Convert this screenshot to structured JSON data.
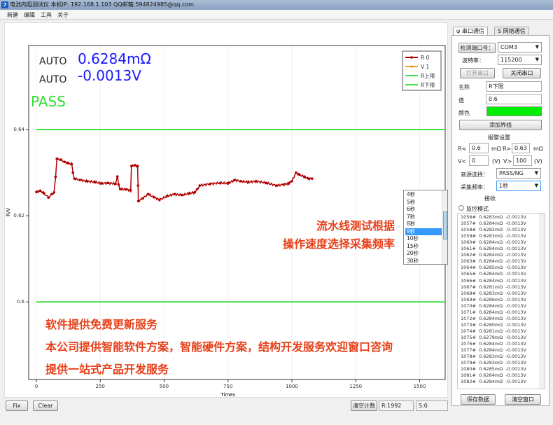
{
  "window": {
    "title": "电池内阻测试仪  本机IP: 192.168.1.103  QQ邮箱:594824985@qq.com",
    "icon": "app-icon"
  },
  "menu": [
    "新建",
    "编辑",
    "工具",
    "关于"
  ],
  "readout": {
    "mode_r": "AUTO",
    "mode_v": "AUTO",
    "resistance": "0.6284mΩ",
    "voltage": "-0.0013V",
    "result": "PASS",
    "result_color": "#33dd33",
    "value_color": "#1a1aff"
  },
  "chart_data": {
    "type": "line",
    "xlabel": "Times",
    "ylabel": "R/V",
    "xlim": [
      -30,
      1600
    ],
    "ylim": [
      0.582,
      0.6595
    ],
    "xticks": [
      "0",
      "250",
      "500",
      "750",
      "1000",
      "1250",
      "1500"
    ],
    "xtick_values": [
      0,
      250,
      500,
      750,
      1000,
      1250,
      1500
    ],
    "yticks": [
      "0.6",
      "0.62",
      "0.64"
    ],
    "ytick_values": [
      0.6,
      0.62,
      0.64
    ],
    "grid": true,
    "legend_placement": "top-right",
    "legend": [
      {
        "name": "R 0",
        "color": "#b00000"
      },
      {
        "name": "V 1",
        "color": "#f0a020"
      },
      {
        "name": "R上限",
        "color": "#44dd44"
      },
      {
        "name": "R下限",
        "color": "#44dd44"
      }
    ],
    "limits": {
      "upper": 0.64,
      "lower": 0.6
    },
    "series": [
      {
        "name": "R 0",
        "color": "#b00000",
        "points": [
          [
            0,
            0.6255
          ],
          [
            15,
            0.6258
          ],
          [
            30,
            0.6252
          ],
          [
            47,
            0.6242
          ],
          [
            60,
            0.625
          ],
          [
            69,
            0.6254
          ],
          [
            75,
            0.629
          ],
          [
            80,
            0.6332
          ],
          [
            95,
            0.633
          ],
          [
            110,
            0.6325
          ],
          [
            125,
            0.6322
          ],
          [
            138,
            0.632
          ],
          [
            143,
            0.63
          ],
          [
            149,
            0.6286
          ],
          [
            170,
            0.6283
          ],
          [
            200,
            0.628
          ],
          [
            230,
            0.6278
          ],
          [
            253,
            0.6275
          ],
          [
            280,
            0.6276
          ],
          [
            310,
            0.6274
          ],
          [
            317,
            0.6291
          ],
          [
            322,
            0.6272
          ],
          [
            328,
            0.6262
          ],
          [
            350,
            0.6261
          ],
          [
            369,
            0.6259
          ],
          [
            372,
            0.6315
          ],
          [
            385,
            0.6317
          ],
          [
            396,
            0.6315
          ],
          [
            398,
            0.627
          ],
          [
            399,
            0.6234
          ],
          [
            415,
            0.624
          ],
          [
            438,
            0.625
          ],
          [
            460,
            0.6243
          ],
          [
            482,
            0.6237
          ],
          [
            510,
            0.6245
          ],
          [
            540,
            0.625
          ],
          [
            570,
            0.6248
          ],
          [
            600,
            0.6252
          ],
          [
            619,
            0.6254
          ],
          [
            630,
            0.6262
          ],
          [
            639,
            0.627
          ],
          [
            680,
            0.6274
          ],
          [
            720,
            0.6276
          ],
          [
            750,
            0.6275
          ],
          [
            776,
            0.6283
          ],
          [
            800,
            0.628
          ],
          [
            830,
            0.6278
          ],
          [
            860,
            0.628
          ],
          [
            900,
            0.6276
          ],
          [
            941,
            0.627
          ],
          [
            970,
            0.6273
          ],
          [
            988,
            0.6275
          ],
          [
            1000,
            0.628
          ],
          [
            1016,
            0.63
          ],
          [
            1030,
            0.6295
          ],
          [
            1050,
            0.629
          ],
          [
            1065,
            0.6286
          ],
          [
            1079,
            0.6286
          ]
        ]
      }
    ]
  },
  "ads": {
    "line1": "流水线测试根据",
    "line2": "操作速度选择采集频率",
    "b1": "软件提供免费更新服务",
    "b2": "本公司提供智能软件方案，智能硬件方案，结构开发服务欢迎窗口咨询",
    "b3": "提供一站式产品开发服务"
  },
  "bottom": {
    "fix": "Fix",
    "clear": "Clear",
    "reset_count": "清空计数",
    "r_count": "R:1992",
    "s_count": "S:0"
  },
  "panel": {
    "tabs": [
      "串口通信",
      "网络通信"
    ],
    "detect_port": "检测端口号：",
    "port": "COM3",
    "baud_label": "波特率：",
    "baud": "115200",
    "open": "打开串口",
    "close": "关闭串口",
    "name_label": "名称",
    "name_value": "R下限",
    "value_label": "值",
    "value_value": "0.6",
    "color_label": "颜色",
    "color_value": "#00ee00",
    "add_line": "添加界线",
    "alarm_title": "报警设置",
    "r_lt": "R<",
    "r_lt_v": "0.6",
    "unit_mohm": "mΩ",
    "r_gt": "R>",
    "r_gt_v": "0.63",
    "v_lt": "V<",
    "v_lt_v": "0",
    "unit_v": "(V)",
    "v_gt": "V>",
    "v_gt_v": "100",
    "sound_label": "音源选择：",
    "sound": "PASS/NG",
    "freq_label": "采集频率：",
    "freq": "1秒",
    "recv_label": "接收",
    "monitor": "监控模式",
    "freq_options": [
      "4秒",
      "5秒",
      "6秒",
      "7秒",
      "8秒",
      "9秒",
      "10秒",
      "15秒",
      "20秒",
      "30秒"
    ],
    "freq_highlight": "9秒",
    "log": [
      "1056#  0.6283mΩ  -0.0013V",
      "1057#  0.6284mΩ  -0.0013V",
      "1058#  0.6282mΩ  -0.0013V",
      "1059#  0.6283mΩ  -0.0013V",
      "1060#  0.6284mΩ  -0.0013V",
      "1061#  0.6284mΩ  -0.0013V",
      "1062#  0.6284mΩ  -0.0013V",
      "1063#  0.6284mΩ  -0.0013V",
      "1064#  0.6285mΩ  -0.0013V",
      "1065#  0.6284mΩ  -0.0013V",
      "1066#  0.6284mΩ  -0.0013V",
      "1067#  0.6281mΩ  -0.0013V",
      "1068#  0.6283mΩ  -0.0013V",
      "1069#  0.6286mΩ  -0.0013V",
      "1070#  0.6284mΩ  -0.0013V",
      "1071#  0.6284mΩ  -0.0013V",
      "1072#  0.6284mΩ  -0.0013V",
      "1073#  0.6280mΩ  -0.0013V",
      "1074#  0.6281mΩ  -0.0013V",
      "1075#  0.6279mΩ  -0.0013V",
      "1076#  0.6284mΩ  -0.0013V",
      "1077#  0.6284mΩ  -0.0013V",
      "1078#  0.6283mΩ  -0.0013V",
      "1079#  0.6283mΩ  -0.0013V",
      "1080#  0.6285mΩ  -0.0013V",
      "1081#  0.6284mΩ  -0.0013V",
      "1082#  0.6284mΩ  -0.0013V"
    ],
    "save": "保存数据",
    "clear_window": "清空窗口"
  }
}
